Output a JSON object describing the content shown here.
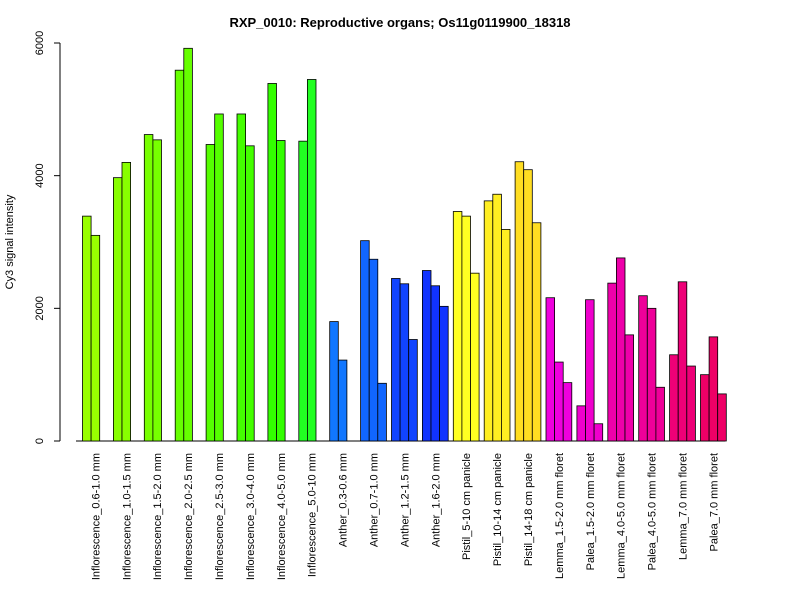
{
  "chart_data": {
    "type": "bar",
    "title": "RXP_0010: Reproductive organs; Os11g0119900_18318",
    "ylabel": "Cy3 signal intensity",
    "xlabel": "",
    "ylim": [
      0,
      6000
    ],
    "yticks": [
      0,
      2000,
      4000,
      6000
    ],
    "grid": false,
    "groups": [
      {
        "label": "Inflorescence_0.6-1.0 mm",
        "color": "#99ff00",
        "values": [
          3390,
          3100
        ]
      },
      {
        "label": "Inflorescence_1.0-1.5 mm",
        "color": "#88ff00",
        "values": [
          3970,
          4200
        ]
      },
      {
        "label": "Inflorescence_1.5-2.0 mm",
        "color": "#77ff00",
        "values": [
          4620,
          4540
        ]
      },
      {
        "label": "Inflorescence_2.0-2.5 mm",
        "color": "#66ff00",
        "values": [
          5590,
          5920
        ]
      },
      {
        "label": "Inflorescence_2.5-3.0 mm",
        "color": "#55ff00",
        "values": [
          4470,
          4930
        ]
      },
      {
        "label": "Inflorescence_3.0-4.0 mm",
        "color": "#44ff00",
        "values": [
          4930,
          4450
        ]
      },
      {
        "label": "Inflorescence_4.0-5.0 mm",
        "color": "#33ff00",
        "values": [
          5390,
          4530
        ]
      },
      {
        "label": "Inflorescence_5.0-10 mm",
        "color": "#22ff22",
        "values": [
          4520,
          5450
        ]
      },
      {
        "label": "Anther_0.3-0.6 mm",
        "color": "#1177ff",
        "values": [
          1800,
          1220
        ]
      },
      {
        "label": "Anther_0.7-1.0 mm",
        "color": "#1166ff",
        "values": [
          3020,
          2740,
          870
        ]
      },
      {
        "label": "Anther_1.2-1.5 mm",
        "color": "#1144ff",
        "values": [
          2450,
          2370,
          1530
        ]
      },
      {
        "label": "Anther_1.6-2.0 mm",
        "color": "#1133ff",
        "values": [
          2570,
          2340,
          2030
        ]
      },
      {
        "label": "Pistil_5-10 cm panicle",
        "color": "#ffff22",
        "values": [
          3460,
          3390,
          2530
        ]
      },
      {
        "label": "Pistil_10-14 cm panicle",
        "color": "#ffee22",
        "values": [
          3620,
          3720,
          3190
        ]
      },
      {
        "label": "Pistil_14-18 cm panicle",
        "color": "#ffdd22",
        "values": [
          4210,
          4090,
          3290
        ]
      },
      {
        "label": "Lemma_1.5-2.0 mm floret",
        "color": "#ee00dd",
        "values": [
          2160,
          1190,
          880
        ]
      },
      {
        "label": "Palea_1.5-2.0 mm floret",
        "color": "#ee00cc",
        "values": [
          530,
          2130,
          260
        ]
      },
      {
        "label": "Lemma_4.0-5.0 mm floret",
        "color": "#ee00aa",
        "values": [
          2380,
          2760,
          1600
        ]
      },
      {
        "label": "Palea_4.0-5.0 mm floret",
        "color": "#ee0099",
        "values": [
          2190,
          2000,
          810
        ]
      },
      {
        "label": "Lemma_7.0 mm floret",
        "color": "#ee0077",
        "values": [
          1300,
          2400,
          1130
        ]
      },
      {
        "label": "Palea_7.0 mm floret",
        "color": "#ee0066",
        "values": [
          1000,
          1570,
          710
        ]
      }
    ]
  }
}
